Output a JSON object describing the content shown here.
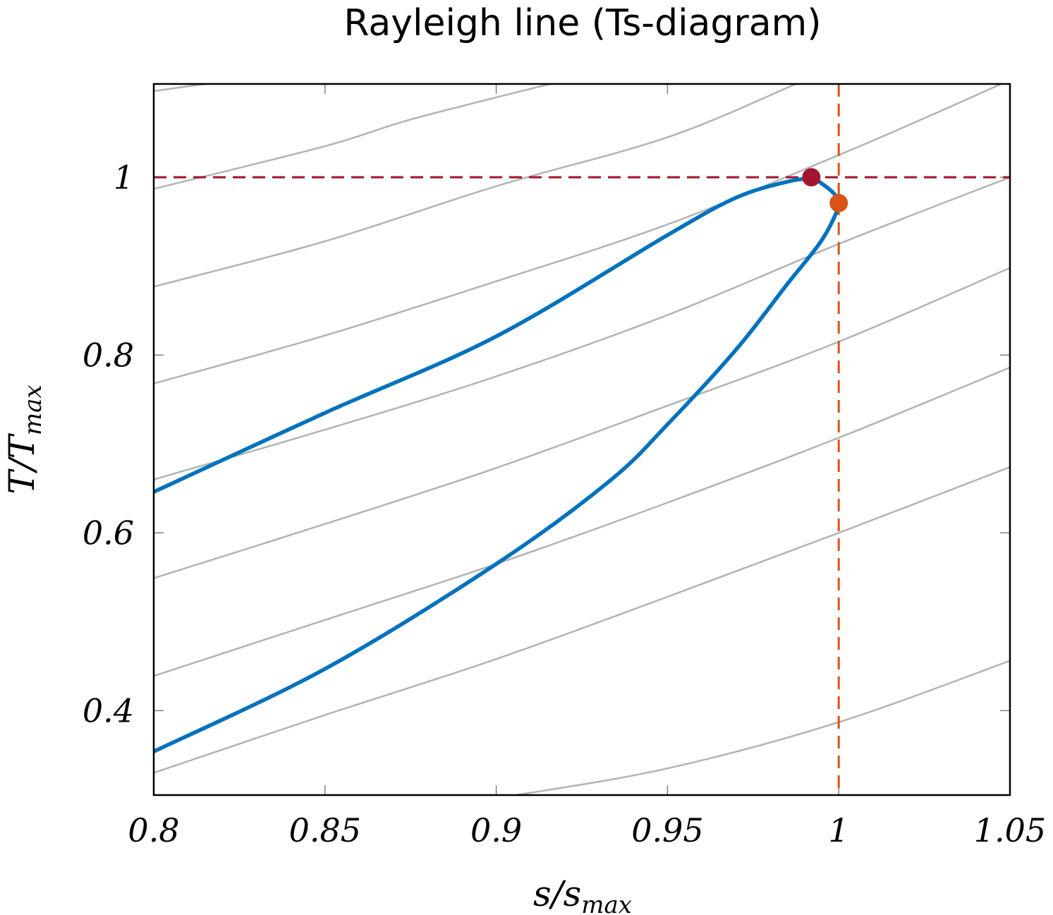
{
  "chart_data": {
    "type": "line",
    "title": "Rayleigh line (Ts-diagram)",
    "xlabel": {
      "main": "s",
      "sep": "/",
      "base": "s",
      "sub": "max"
    },
    "ylabel": {
      "main": "T",
      "sep": "/",
      "base": "T",
      "sub": "max"
    },
    "xlim": [
      0.8,
      1.05
    ],
    "ylim": [
      0.305,
      1.105
    ],
    "xticks": [
      0.8,
      0.85,
      0.9,
      0.95,
      1.0,
      1.05
    ],
    "xtick_labels": [
      "0.8",
      "0.85",
      "0.9",
      "0.95",
      "1",
      "1.05"
    ],
    "yticks": [
      0.4,
      0.6,
      0.8,
      1.0
    ],
    "ytick_labels": [
      "0.4",
      "0.6",
      "0.8",
      "1"
    ],
    "grid": false,
    "colors": {
      "rayleigh_line": "#0072bd",
      "isobar": "#b3b3b3",
      "max_temperature": "#a2142f",
      "max_entropy": "#d95319",
      "frame": "#000000"
    },
    "series": [
      {
        "kind": "rayleigh",
        "points": [
          [
            0.8,
            0.354
          ],
          [
            0.85,
            0.447
          ],
          [
            0.9,
            0.565
          ],
          [
            0.933,
            0.658
          ],
          [
            0.95,
            0.722
          ],
          [
            0.97,
            0.806
          ],
          [
            0.985,
            0.88
          ],
          [
            0.995,
            0.929
          ],
          [
            1.0,
            0.968
          ],
          [
            0.999,
            0.98
          ],
          [
            0.995,
            0.993
          ],
          [
            0.992,
            0.998
          ],
          [
            0.985,
            0.995
          ],
          [
            0.97,
            0.977
          ],
          [
            0.95,
            0.935
          ],
          [
            0.9,
            0.821
          ],
          [
            0.85,
            0.735
          ],
          [
            0.8,
            0.646
          ]
        ]
      },
      {
        "kind": "isobar",
        "points": [
          [
            0.8,
            1.097
          ],
          [
            0.8151,
            1.105
          ]
        ]
      },
      {
        "kind": "isobar",
        "points": [
          [
            0.8,
            0.987
          ],
          [
            0.85,
            1.035
          ],
          [
            0.875,
            1.065
          ],
          [
            0.9157,
            1.105
          ]
        ]
      },
      {
        "kind": "isobar",
        "points": [
          [
            0.8,
            0.877
          ],
          [
            0.85,
            0.928
          ],
          [
            0.9,
            0.99
          ],
          [
            0.95,
            1.045
          ],
          [
            0.9875,
            1.105
          ]
        ]
      },
      {
        "kind": "isobar",
        "points": [
          [
            0.8,
            0.768
          ],
          [
            0.85,
            0.822
          ],
          [
            0.9,
            0.883
          ],
          [
            0.95,
            0.947
          ],
          [
            1.0,
            1.025
          ],
          [
            1.03,
            1.075
          ],
          [
            1.0474,
            1.105
          ]
        ]
      },
      {
        "kind": "isobar",
        "points": [
          [
            0.8,
            0.66
          ],
          [
            0.85,
            0.716
          ],
          [
            0.9,
            0.776
          ],
          [
            0.95,
            0.845
          ],
          [
            1.0,
            0.925
          ],
          [
            1.05,
            1.0
          ]
        ]
      },
      {
        "kind": "isobar",
        "points": [
          [
            0.8,
            0.549
          ],
          [
            0.85,
            0.61
          ],
          [
            0.9,
            0.673
          ],
          [
            0.95,
            0.743
          ],
          [
            1.0,
            0.815
          ],
          [
            1.05,
            0.898
          ]
        ]
      },
      {
        "kind": "isobar",
        "points": [
          [
            0.8,
            0.439
          ],
          [
            0.85,
            0.502
          ],
          [
            0.9,
            0.565
          ],
          [
            0.95,
            0.634
          ],
          [
            1.0,
            0.707
          ],
          [
            1.05,
            0.786
          ]
        ]
      },
      {
        "kind": "isobar",
        "points": [
          [
            0.8,
            0.33
          ],
          [
            0.85,
            0.395
          ],
          [
            0.9,
            0.458
          ],
          [
            0.95,
            0.528
          ],
          [
            1.0,
            0.6
          ],
          [
            1.05,
            0.674
          ]
        ]
      },
      {
        "kind": "isobar",
        "points": [
          [
            0.906,
            0.305
          ],
          [
            0.95,
            0.335
          ],
          [
            1.0,
            0.387
          ],
          [
            1.05,
            0.456
          ]
        ]
      }
    ],
    "reference_lines": [
      {
        "kind": "max_temperature",
        "orientation": "horizontal",
        "value": 1.0
      },
      {
        "kind": "max_entropy",
        "orientation": "vertical",
        "value": 1.0
      }
    ],
    "markers": [
      {
        "kind": "max_temperature",
        "x": 0.992,
        "y": 1.0
      },
      {
        "kind": "max_entropy",
        "x": 1.0,
        "y": 0.971
      }
    ]
  }
}
